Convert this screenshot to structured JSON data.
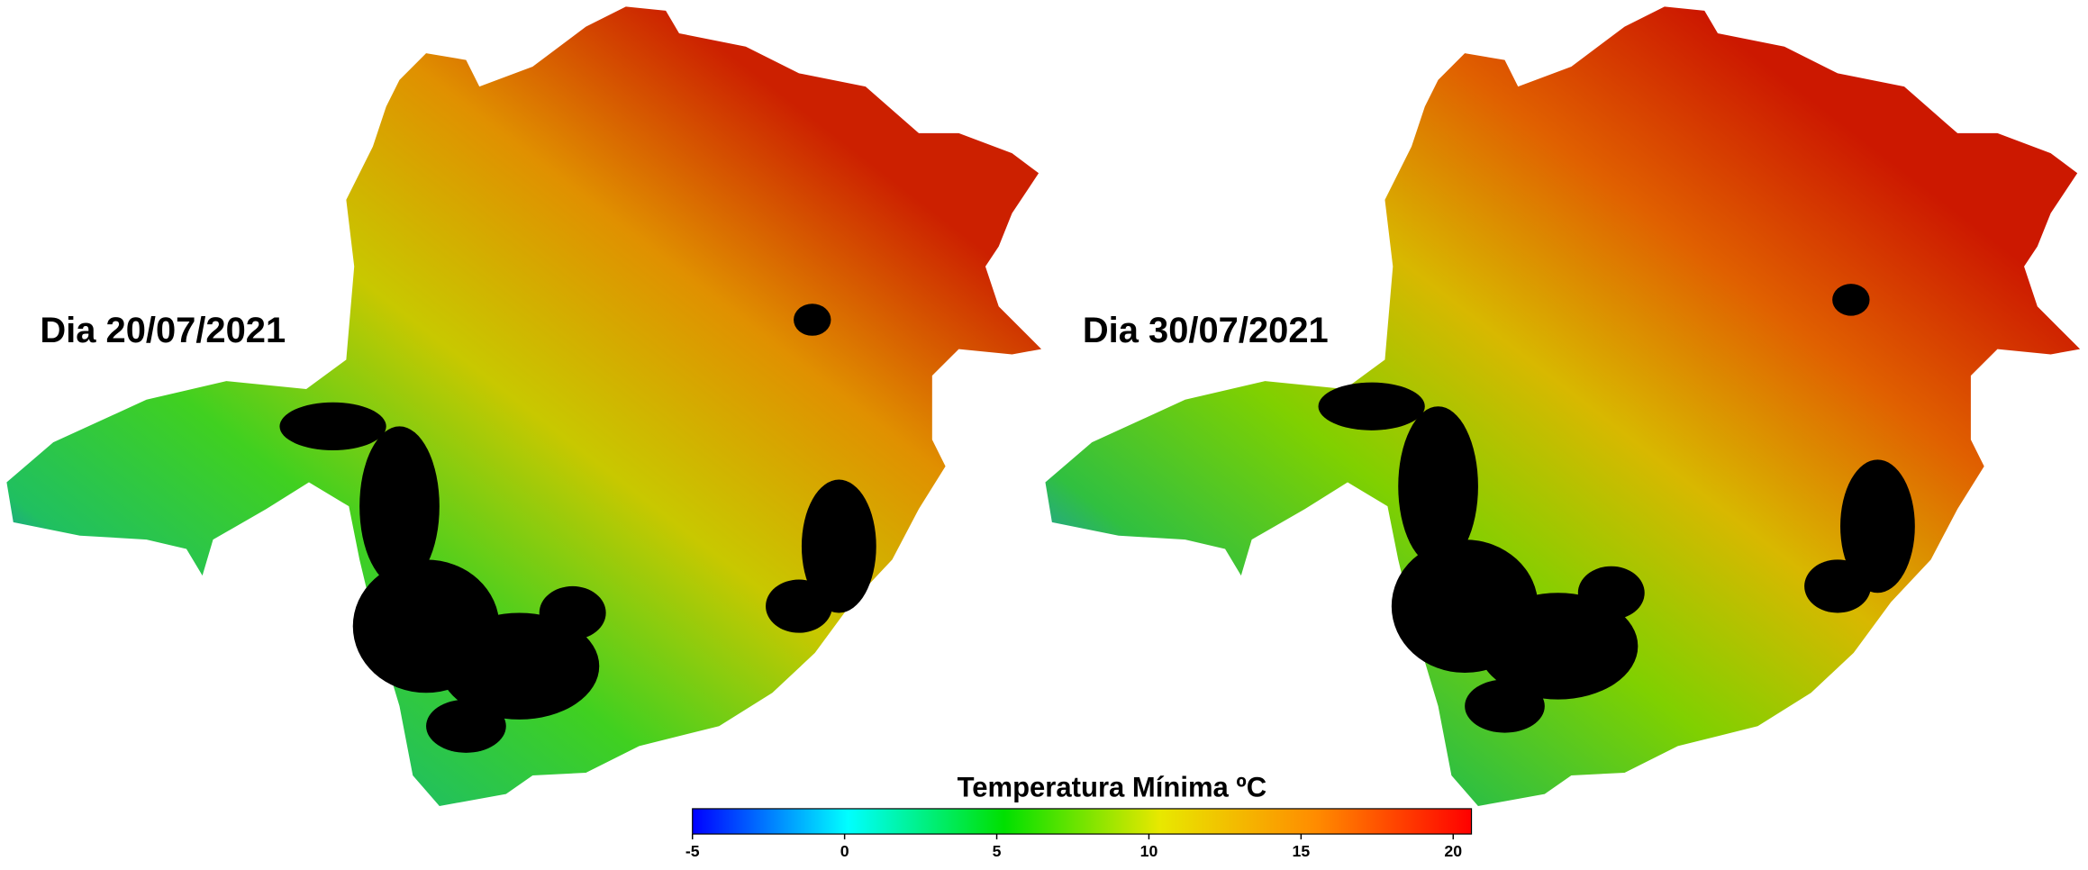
{
  "panels": [
    {
      "label": "Dia 20/07/2021"
    },
    {
      "label": "Dia 30/07/2021"
    }
  ],
  "colorbar": {
    "title": "Temperatura Mínima ºC",
    "range": [
      -5,
      20.6
    ],
    "ticks": [
      -5,
      0,
      5,
      10,
      15,
      20
    ],
    "colors": [
      "#0000ff",
      "#00ffff",
      "#00e000",
      "#e8e800",
      "#ff8c00",
      "#ff0000"
    ]
  }
}
